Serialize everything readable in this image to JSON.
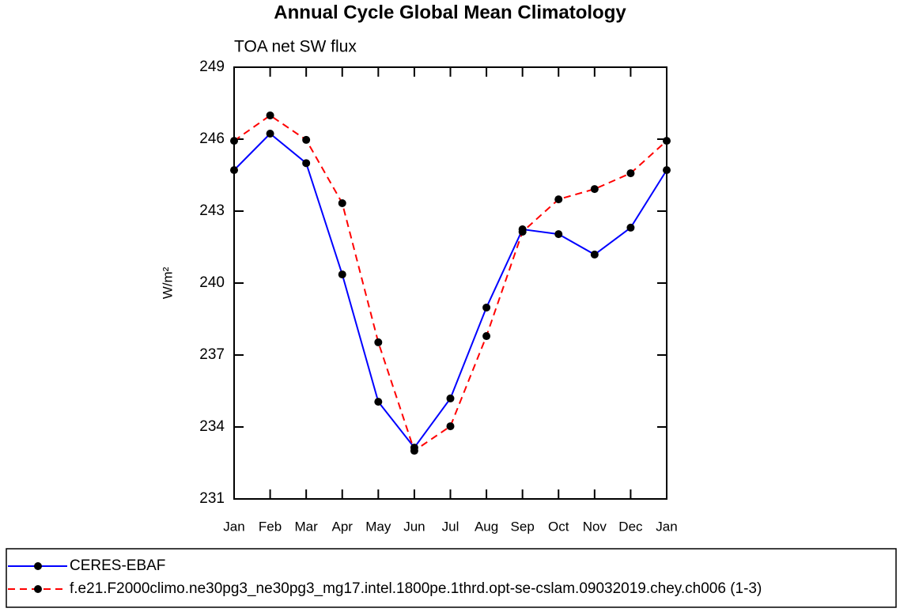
{
  "chart_data": {
    "type": "line",
    "title": "Annual Cycle Global Mean Climatology",
    "subtitle": "TOA net SW flux",
    "y_label": "W/m²",
    "categories": [
      "Jan",
      "Feb",
      "Mar",
      "Apr",
      "May",
      "Jun",
      "Jul",
      "Aug",
      "Sep",
      "Oct",
      "Nov",
      "Dec",
      "Jan"
    ],
    "ylim": [
      231,
      249
    ],
    "yticks": [
      231,
      234,
      237,
      240,
      243,
      246,
      249
    ],
    "grid": false,
    "legend": "bottom",
    "series": [
      {
        "name": "CERES-EBAF",
        "color": "#0000ff",
        "dash": false,
        "values": [
          244.71,
          246.23,
          245.0,
          240.36,
          235.05,
          233.14,
          235.19,
          238.98,
          242.24,
          242.04,
          241.19,
          242.31,
          244.71
        ]
      },
      {
        "name": "f.e21.F2000climo.ne30pg3_ne30pg3_mg17.intel.1800pe.1thrd.opt-se-cslam.09032019.chey.ch006 (1-3)",
        "color": "#ff0000",
        "dash": true,
        "values": [
          245.93,
          246.99,
          245.97,
          243.33,
          237.53,
          233.01,
          234.03,
          237.79,
          242.14,
          243.49,
          243.92,
          244.58,
          245.93
        ]
      }
    ]
  }
}
